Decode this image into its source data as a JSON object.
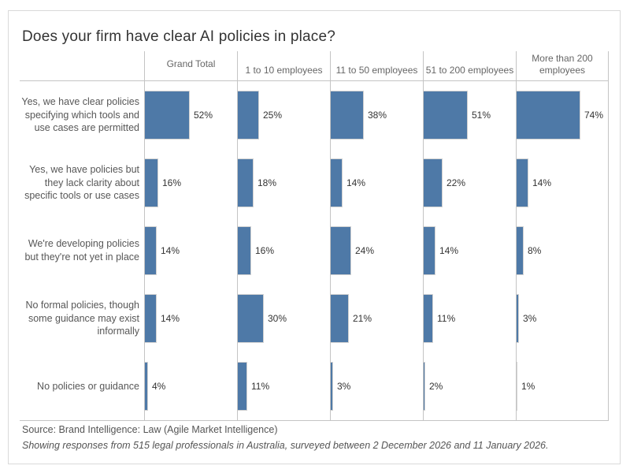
{
  "title": "Does your firm have clear AI policies in place?",
  "footer": {
    "source": "Source: Brand Intelligence: Law (Agile Market Intelligence)",
    "note": "Showing responses from 515 legal professionals in Australia, surveyed between 2 December 2026 and 11 January 2026."
  },
  "colors": {
    "bar": "#4e79a7",
    "grid": "#c4c4c4",
    "text": "#575757"
  },
  "chart_data": {
    "type": "bar",
    "orientation": "horizontal",
    "layout": "small-multiples (one panel per firm-size column)",
    "panel_columns": [
      "Grand Total",
      "1 to 10 employees",
      "11 to 50 employees",
      "51 to 200 employees",
      "More than 200 employees"
    ],
    "categories": [
      "Yes, we have clear policies specifying which tools and use cases are permitted",
      "Yes, we have policies but they lack clarity about specific tools or use cases",
      "We're developing policies but they're not yet in place",
      "No formal policies, though some guidance may exist informally",
      "No policies or guidance"
    ],
    "series": [
      {
        "name": "Grand Total",
        "values": [
          52,
          16,
          14,
          14,
          4
        ]
      },
      {
        "name": "1 to 10 employees",
        "values": [
          25,
          18,
          16,
          30,
          11
        ]
      },
      {
        "name": "11 to 50 employees",
        "values": [
          38,
          14,
          24,
          21,
          3
        ]
      },
      {
        "name": "51 to 200 employees",
        "values": [
          51,
          22,
          14,
          11,
          2
        ]
      },
      {
        "name": "More than 200 employees",
        "values": [
          74,
          14,
          8,
          3,
          1
        ]
      }
    ],
    "value_format": "percent",
    "value_suffix": "%",
    "xlim": [
      0,
      108
    ],
    "grid": "column separators only, no horizontal gridlines",
    "legend": "none"
  }
}
